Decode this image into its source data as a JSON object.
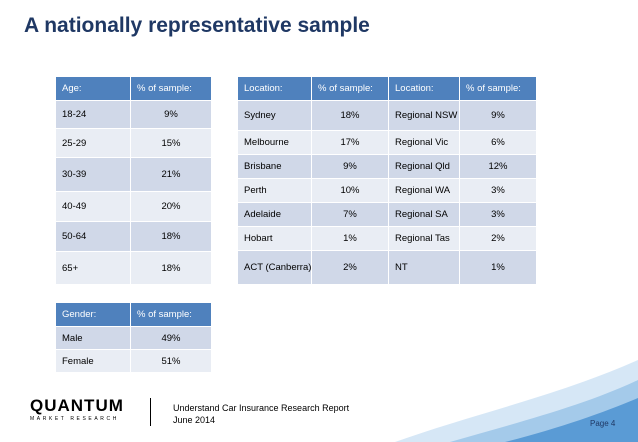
{
  "page": {
    "title": "A nationally representative sample"
  },
  "age_table": {
    "headers": [
      "Age:",
      "% of sample:"
    ],
    "rows": [
      [
        "18-24",
        "9%"
      ],
      [
        "25-29",
        "15%"
      ],
      [
        "30-39",
        "21%"
      ],
      [
        "40-49",
        "20%"
      ],
      [
        "50-64",
        "18%"
      ],
      [
        "65+",
        "18%"
      ]
    ]
  },
  "gender_table": {
    "headers": [
      "Gender:",
      "% of sample:"
    ],
    "rows": [
      [
        "Male",
        "49%"
      ],
      [
        "Female",
        "51%"
      ]
    ]
  },
  "location_table": {
    "headers": [
      "Location:",
      "% of sample:",
      "Location:",
      "% of sample:"
    ],
    "rows": [
      [
        "Sydney",
        "18%",
        "Regional NSW",
        "9%"
      ],
      [
        "Melbourne",
        "17%",
        "Regional Vic",
        "6%"
      ],
      [
        "Brisbane",
        "9%",
        "Regional Qld",
        "12%"
      ],
      [
        "Perth",
        "10%",
        "Regional WA",
        "3%"
      ],
      [
        "Adelaide",
        "7%",
        "Regional SA",
        "3%"
      ],
      [
        "Hobart",
        "1%",
        "Regional Tas",
        "2%"
      ],
      [
        "ACT (Canberra)",
        "2%",
        "NT",
        "1%"
      ]
    ]
  },
  "footer": {
    "logo_name": "QUANTUM",
    "logo_tagline": "MARKET RESEARCH",
    "report_title": "Understand Car Insurance Research Report",
    "report_date": "June 2014",
    "page_label": "Page 4"
  },
  "colors": {
    "title": "#1f3864",
    "header_bg": "#4f81bd",
    "band_dark": "#d0d8e8",
    "band_light": "#e9edf4",
    "swoosh_dark": "#5a9bd5",
    "swoosh_light": "#b4d4ee"
  }
}
